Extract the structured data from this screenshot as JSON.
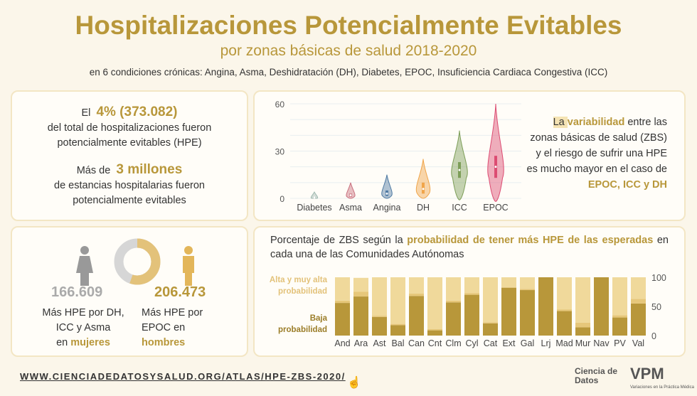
{
  "header": {
    "title": "Hospitalizaciones Potencialmente Evitables",
    "subtitle": "por zonas básicas de salud 2018-2020",
    "description": "en 6 condiciones crónicas: Angina, Asma, Deshidratación (DH), Diabetes, EPOC, Insuficiencia Cardiaca Congestiva (ICC)"
  },
  "summary": {
    "pre1": "El",
    "value1": "4% (373.082)",
    "text1": "del total de hospitalizaciones fueron potencialmente evitables (HPE)",
    "pre2": "Más de",
    "value2": "3 millones",
    "text2": "de estancias hospitalarias fueron potencialmente evitables"
  },
  "variability": {
    "t1": "La ",
    "t2": "variabilidad",
    "t3": " entre las zonas básicas de salud (ZBS) y el riesgo de sufrir una HPE es mucho mayor en el caso de ",
    "t4": "EPOC, ICC y DH"
  },
  "gender": {
    "women_value": "166.609",
    "women_text": "Más HPE por DH, ICC y Asma",
    "women_en": "en ",
    "women_label": "mujeres",
    "men_value": "206.473",
    "men_text": "Más HPE por EPOC en",
    "men_label": "hombres",
    "donut_women_fraction": 0.447
  },
  "bars_text": {
    "t1": "Porcentaje de ZBS según la ",
    "t2": "probabilidad de tener más HPE de las esperadas",
    "t3": " en cada una de las Comunidades Autónomas",
    "legend_high": "Alta y muy alta probabilidad",
    "legend_low": "Baja probabilidad"
  },
  "footer": {
    "url": "WWW.CIENCIADEDATOSYSALUD.ORG/ATLAS/HPE-ZBS-2020/",
    "logo1": "Ciencia de Datos",
    "logo2": "VPM",
    "logo2_sub": "Variaciones en la Práctica Médica"
  },
  "chart_data": [
    {
      "type": "violin",
      "categories": [
        "Diabetes",
        "Asma",
        "Angina",
        "DH",
        "ICC",
        "EPOC"
      ],
      "ylim": [
        0,
        60
      ],
      "yticks": [
        0,
        30,
        60
      ],
      "series": [
        {
          "median": 0.5,
          "q1": 0,
          "q3": 1,
          "min": 0,
          "max": 4,
          "color": "#9fb8b0"
        },
        {
          "median": 2,
          "q1": 1,
          "q3": 3,
          "min": 0,
          "max": 10,
          "color": "#c9707e"
        },
        {
          "median": 3,
          "q1": 1.5,
          "q3": 5,
          "min": 0,
          "max": 15,
          "color": "#4f7aa3"
        },
        {
          "median": 6,
          "q1": 3,
          "q3": 10,
          "min": 0,
          "max": 25,
          "color": "#f0a54a"
        },
        {
          "median": 18,
          "q1": 13,
          "q3": 23,
          "min": -1,
          "max": 43,
          "color": "#7d9e58"
        },
        {
          "median": 20,
          "q1": 13,
          "q3": 27,
          "min": -2,
          "max": 60,
          "color": "#dc4c72"
        }
      ]
    },
    {
      "type": "bar",
      "stacked": true,
      "categories": [
        "And",
        "Ara",
        "Ast",
        "Bal",
        "Can",
        "Cnt",
        "Clm",
        "Cyl",
        "Cat",
        "Ext",
        "Gal",
        "Lrj",
        "Mad",
        "Mur",
        "Nav",
        "PV",
        "Val"
      ],
      "ylim": [
        0,
        100
      ],
      "yticks": [
        0,
        50,
        100
      ],
      "series": [
        {
          "name": "Baja probabilidad",
          "color": "#b8973a",
          "values": [
            56,
            67,
            32,
            18,
            68,
            9,
            57,
            70,
            21,
            82,
            78,
            100,
            42,
            14,
            100,
            31,
            55
          ]
        },
        {
          "color": "#e6c77a",
          "values": [
            4,
            8,
            2,
            2,
            4,
            2,
            3,
            3,
            2,
            1,
            2,
            0,
            3,
            8,
            0,
            4,
            8
          ]
        },
        {
          "name": "Alta y muy alta probabilidad",
          "color": "#f0d99b",
          "values": [
            40,
            24,
            66,
            80,
            28,
            89,
            40,
            27,
            77,
            17,
            20,
            0,
            55,
            78,
            0,
            65,
            37
          ]
        }
      ]
    }
  ]
}
